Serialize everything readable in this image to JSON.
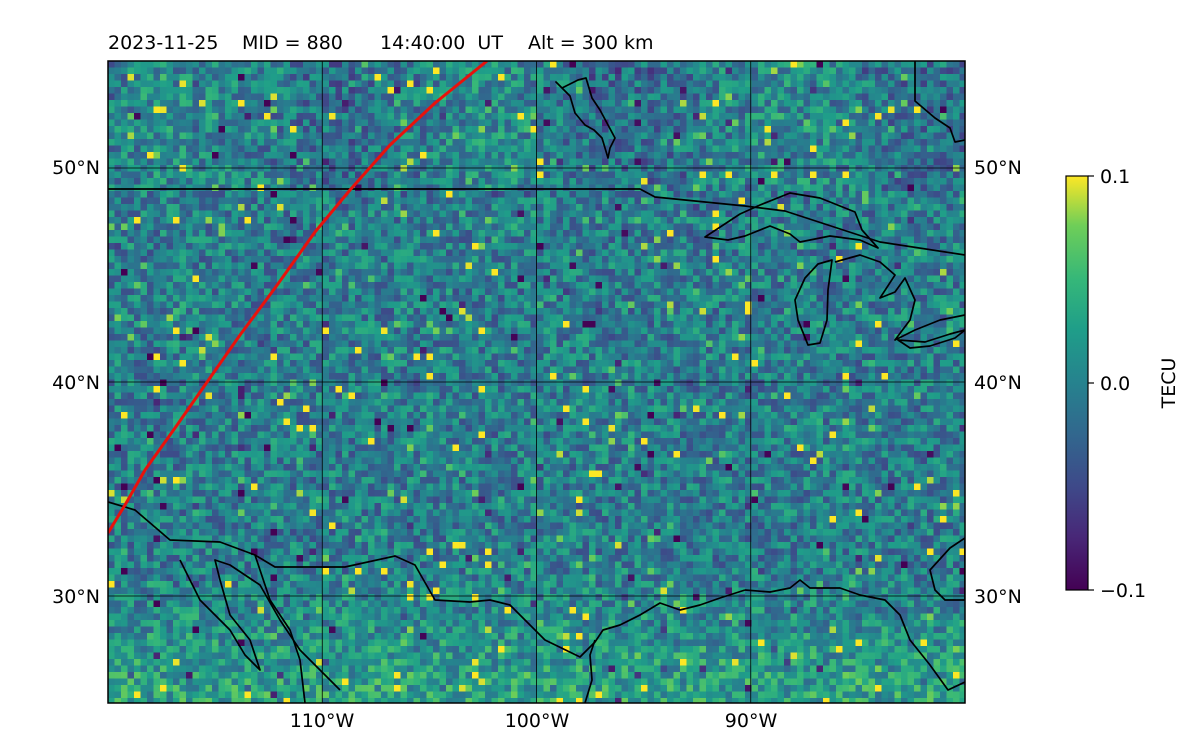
{
  "title": {
    "date": "2023-11-25",
    "mid": "MID = 880",
    "time": "14:40:00  UT",
    "alt": "Alt = 300 km"
  },
  "map": {
    "lon_range": [
      -120,
      -80
    ],
    "lat_range": [
      25,
      55
    ],
    "lon_ticks": [
      {
        "value": -110,
        "label": "110°W"
      },
      {
        "value": -100,
        "label": "100°W"
      },
      {
        "value": -90,
        "label": "90°W"
      }
    ],
    "lat_ticks": [
      {
        "value": 30,
        "label": "30°N"
      },
      {
        "value": 40,
        "label": "40°N"
      },
      {
        "value": 50,
        "label": "50°N"
      }
    ],
    "gridlines": true,
    "colormap": "viridis",
    "track_color": "#e8120c"
  },
  "colorbar": {
    "label": "TECU",
    "min": -0.1,
    "max": 0.1,
    "ticks": [
      {
        "value": 0.1,
        "label": "0.1"
      },
      {
        "value": 0.0,
        "label": "0.0"
      },
      {
        "value": -0.1,
        "label": "−0.1"
      }
    ]
  }
}
